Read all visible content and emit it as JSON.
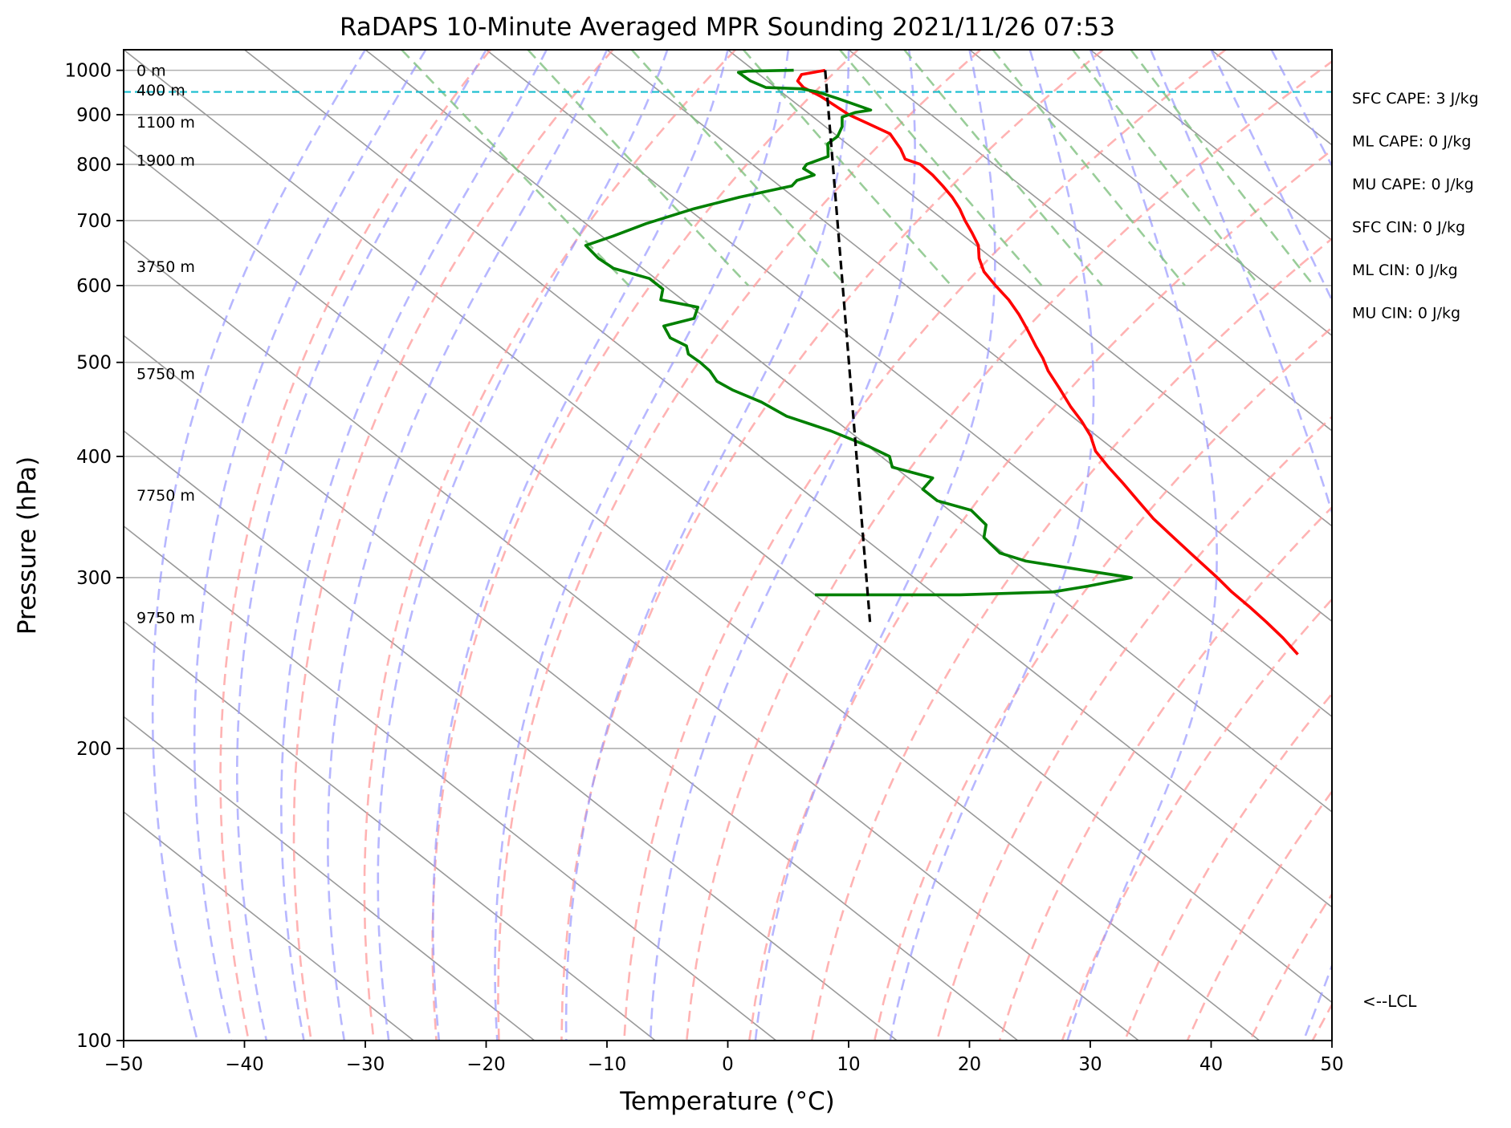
{
  "chart_data": {
    "type": "line",
    "title": "RaDAPS 10-Minute Averaged MPR Sounding 2021/11/26 07:53",
    "xlabel": "Temperature (°C)",
    "ylabel": "Pressure (hPa)",
    "xlim": [
      -50,
      50
    ],
    "ylim": [
      1050,
      100
    ],
    "yscale": "log",
    "x_ticks": [
      -50,
      -40,
      -30,
      -20,
      -10,
      0,
      10,
      20,
      30,
      40,
      50
    ],
    "x_tick_labels": [
      "−50",
      "−40",
      "−30",
      "−20",
      "−10",
      "0",
      "10",
      "20",
      "30",
      "40",
      "50"
    ],
    "y_ticks": [
      1000,
      900,
      800,
      700,
      600,
      500,
      400,
      300,
      200,
      100
    ],
    "y_tick_labels": [
      "1000",
      "900",
      "800",
      "700",
      "600",
      "500",
      "400",
      "300",
      "200",
      "100"
    ],
    "grid": true,
    "height_labels": [
      {
        "p": 1000,
        "text": "0 m"
      },
      {
        "p": 955,
        "text": "400 m"
      },
      {
        "p": 885,
        "text": "1100 m"
      },
      {
        "p": 808,
        "text": "1900 m"
      },
      {
        "p": 628,
        "text": "3750 m"
      },
      {
        "p": 487,
        "text": "5750 m"
      },
      {
        "p": 365,
        "text": "7750 m"
      },
      {
        "p": 273,
        "text": "9750 m"
      }
    ],
    "stats": [
      "SFC CAPE: 3 J/kg",
      "ML CAPE: 0 J/kg",
      "MU CAPE: 0 J/kg",
      "SFC CIN: 0 J/kg",
      "ML CIN: 0 J/kg",
      "MU CIN: 0 J/kg"
    ],
    "lcl": {
      "p": 950,
      "label": "<--LCL",
      "color": "#17becf"
    },
    "colors": {
      "temperature": "#ff0000",
      "dewpoint": "#008000",
      "parcel": "#000000",
      "dry_adiabats": "#ff9999",
      "moist_adiabats": "#9999ff",
      "mixing_ratio": "#80c080",
      "isotherms": "#999999",
      "grid": "#b0b0b0"
    },
    "series": [
      {
        "role": "temperature",
        "points": [
          [
            5.9,
            1000
          ],
          [
            3.5,
            990
          ],
          [
            2.5,
            975
          ],
          [
            2.3,
            960
          ],
          [
            2.8,
            940
          ],
          [
            3.0,
            920
          ],
          [
            3.2,
            900
          ],
          [
            3.9,
            880
          ],
          [
            4.6,
            860
          ],
          [
            3.9,
            830
          ],
          [
            3.2,
            810
          ],
          [
            3.9,
            800
          ],
          [
            3.8,
            780
          ],
          [
            3.5,
            760
          ],
          [
            3.1,
            740
          ],
          [
            2.5,
            720
          ],
          [
            1.7,
            700
          ],
          [
            1.0,
            680
          ],
          [
            0.2,
            660
          ],
          [
            -1.1,
            640
          ],
          [
            -2.1,
            620
          ],
          [
            -2.6,
            600
          ],
          [
            -3.0,
            580
          ],
          [
            -3.7,
            560
          ],
          [
            -4.6,
            540
          ],
          [
            -5.6,
            520
          ],
          [
            -6.3,
            505
          ],
          [
            -7.2,
            490
          ],
          [
            -8.1,
            470
          ],
          [
            -9.1,
            450
          ],
          [
            -9.7,
            435
          ],
          [
            -10.5,
            420
          ],
          [
            -11.7,
            405
          ],
          [
            -12.3,
            390
          ],
          [
            -12.8,
            375
          ],
          [
            -13.4,
            360
          ],
          [
            -14.0,
            345
          ],
          [
            -14.3,
            330
          ],
          [
            -14.6,
            315
          ],
          [
            -14.9,
            300
          ],
          [
            -15.2,
            290
          ],
          [
            -15.3,
            280
          ],
          [
            -15.5,
            270
          ],
          [
            -15.8,
            260
          ],
          [
            -16.3,
            250
          ]
        ]
      },
      {
        "role": "dewpoint",
        "points": [
          [
            3.3,
            1000
          ],
          [
            -0.6,
            998
          ],
          [
            -1.5,
            995
          ],
          [
            -1.4,
            975
          ],
          [
            -0.8,
            960
          ],
          [
            2.0,
            957
          ],
          [
            3.0,
            950
          ],
          [
            4.0,
            935
          ],
          [
            5.5,
            910
          ],
          [
            4.0,
            905
          ],
          [
            2.4,
            895
          ],
          [
            1.4,
            875
          ],
          [
            0.0,
            855
          ],
          [
            -1.6,
            840
          ],
          [
            -2.9,
            815
          ],
          [
            -5.5,
            800
          ],
          [
            -6.2,
            792
          ],
          [
            -6.0,
            780
          ],
          [
            -8.0,
            770
          ],
          [
            -9.0,
            760
          ],
          [
            -14.5,
            740
          ],
          [
            -19.5,
            720
          ],
          [
            -25.0,
            695
          ],
          [
            -29.0,
            675
          ],
          [
            -32.3,
            660
          ],
          [
            -32.6,
            640
          ],
          [
            -32.4,
            625
          ],
          [
            -30.5,
            610
          ],
          [
            -30.5,
            595
          ],
          [
            -31.8,
            580
          ],
          [
            -29.5,
            570
          ],
          [
            -31.0,
            555
          ],
          [
            -34.3,
            545
          ],
          [
            -35.0,
            530
          ],
          [
            -34.5,
            520
          ],
          [
            -35.2,
            510
          ],
          [
            -35.1,
            500
          ],
          [
            -35.2,
            490
          ],
          [
            -35.7,
            478
          ],
          [
            -35.3,
            468
          ],
          [
            -34.2,
            455
          ],
          [
            -33.6,
            440
          ],
          [
            -31.5,
            425
          ],
          [
            -30.0,
            410
          ],
          [
            -29.3,
            400
          ],
          [
            -30.2,
            390
          ],
          [
            -28.0,
            380
          ],
          [
            -30.0,
            370
          ],
          [
            -30.0,
            360
          ],
          [
            -28.2,
            352
          ],
          [
            -28.5,
            340
          ],
          [
            -30.0,
            330
          ],
          [
            -30.3,
            318
          ],
          [
            -29.0,
            312
          ],
          [
            -25.0,
            305
          ],
          [
            -22.0,
            300
          ],
          [
            -26.5,
            294
          ],
          [
            -30.0,
            290
          ],
          [
            -38.0,
            288
          ],
          [
            -50.0,
            288
          ]
        ]
      },
      {
        "role": "parcel",
        "points": [
          [
            5.9,
            1000
          ],
          [
            -48.3,
            270
          ]
        ]
      }
    ]
  }
}
